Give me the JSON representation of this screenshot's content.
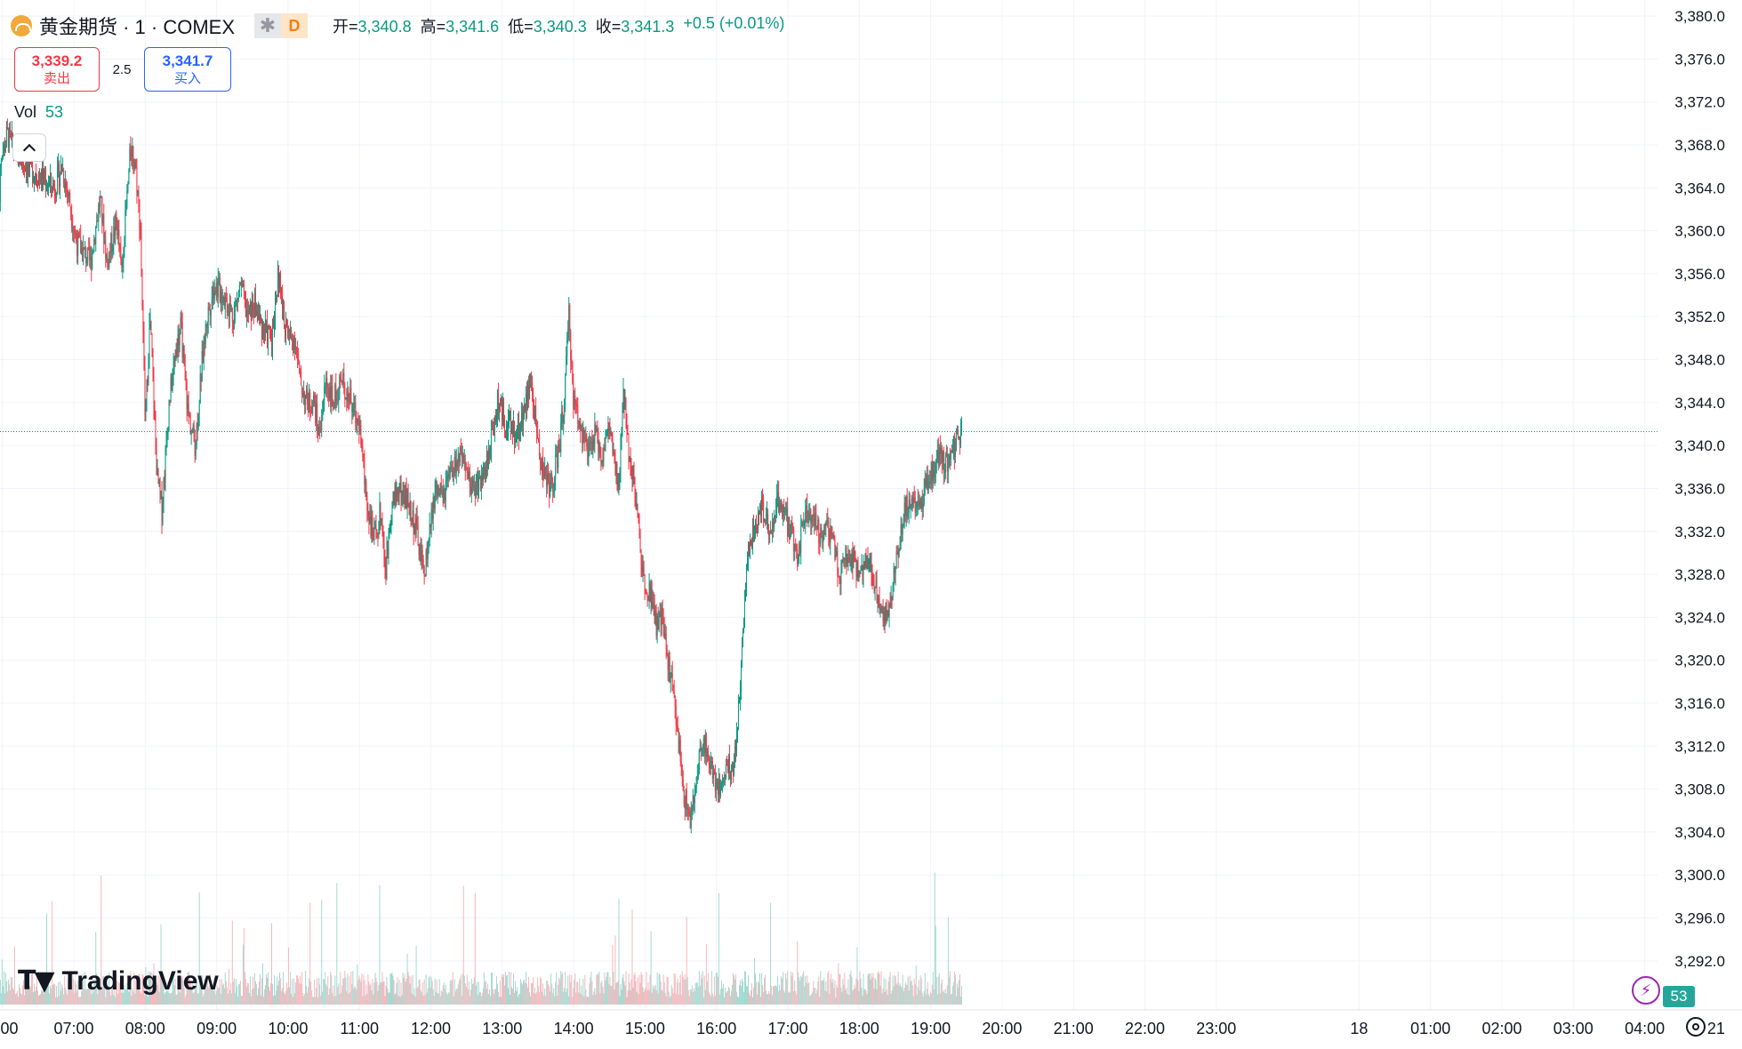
{
  "header": {
    "symbol_title": "黄金期货 · 1 · COMEX",
    "badge_d": "D",
    "ohlc": [
      {
        "k": "开=",
        "v": "3,340.8"
      },
      {
        "k": "高=",
        "v": "3,341.6"
      },
      {
        "k": "低=",
        "v": "3,340.3"
      },
      {
        "k": "收=",
        "v": "3,341.3"
      }
    ],
    "change": "+0.5 (+0.01%)"
  },
  "trade": {
    "sell_price": "3,339.2",
    "sell_label": "卖出",
    "spread": "2.5",
    "buy_price": "3,341.7",
    "buy_label": "买入"
  },
  "volume_legend": {
    "label": "Vol",
    "value": "53"
  },
  "branding": {
    "logo_text": "TradingView"
  },
  "status": {
    "volume_badge": "53"
  },
  "colors": {
    "up": "#089981",
    "down": "#f23645",
    "up_volume": "#a3d9d1",
    "down_volume": "#f7b7bc",
    "grid": "#f0f3fa",
    "last_price": "#089981"
  },
  "chart_data": {
    "type": "candlestick",
    "title": "黄金期货 · 1 · COMEX",
    "y_axis": {
      "ylim": [
        3290.0,
        3381.0
      ],
      "ticks": [
        "3,292.0",
        "3,296.0",
        "3,300.0",
        "3,304.0",
        "3,308.0",
        "3,312.0",
        "3,316.0",
        "3,320.0",
        "3,324.0",
        "3,328.0",
        "3,332.0",
        "3,336.0",
        "3,340.0",
        "3,344.0",
        "3,348.0",
        "3,352.0",
        "3,356.0",
        "3,360.0",
        "3,364.0",
        "3,368.0",
        "3,372.0",
        "3,376.0",
        "3,380.0"
      ],
      "tick_values": [
        3292,
        3296,
        3300,
        3304,
        3308,
        3312,
        3316,
        3320,
        3324,
        3328,
        3332,
        3336,
        3340,
        3344,
        3348,
        3352,
        3356,
        3360,
        3364,
        3368,
        3372,
        3376,
        3380
      ]
    },
    "x_axis": {
      "labels": [
        ":00",
        "07:00",
        "08:00",
        "09:00",
        "10:00",
        "11:00",
        "12:00",
        "13:00",
        "14:00",
        "15:00",
        "16:00",
        "17:00",
        "18:00",
        "19:00",
        "20:00",
        "21:00",
        "22:00",
        "23:00",
        "18",
        "01:00",
        "02:00",
        "03:00",
        "04:00",
        "21"
      ],
      "label_minutes": [
        -60,
        0,
        60,
        120,
        180,
        240,
        300,
        360,
        420,
        480,
        540,
        600,
        660,
        720,
        780,
        840,
        900,
        960,
        1080,
        1140,
        1200,
        1260,
        1320,
        1380
      ]
    },
    "last_price": 3341.3,
    "last_price_label": "3,341.3",
    "price_path": [
      [
        -64,
        3357
      ],
      [
        -62,
        3366
      ],
      [
        -56,
        3369
      ],
      [
        -48,
        3367
      ],
      [
        -38,
        3366
      ],
      [
        -28,
        3365
      ],
      [
        -16,
        3364
      ],
      [
        -10,
        3366
      ],
      [
        -4,
        3363
      ],
      [
        2,
        3359
      ],
      [
        8,
        3358
      ],
      [
        14,
        3357
      ],
      [
        22,
        3363
      ],
      [
        28,
        3357
      ],
      [
        36,
        3361
      ],
      [
        40,
        3356
      ],
      [
        44,
        3362
      ],
      [
        48,
        3368
      ],
      [
        52,
        3366
      ],
      [
        56,
        3360
      ],
      [
        60,
        3342
      ],
      [
        64,
        3352
      ],
      [
        70,
        3337
      ],
      [
        74,
        3334
      ],
      [
        80,
        3344
      ],
      [
        86,
        3349
      ],
      [
        90,
        3351
      ],
      [
        96,
        3343
      ],
      [
        102,
        3340
      ],
      [
        108,
        3348
      ],
      [
        112,
        3352
      ],
      [
        118,
        3355
      ],
      [
        126,
        3354
      ],
      [
        134,
        3352
      ],
      [
        140,
        3355
      ],
      [
        146,
        3352
      ],
      [
        152,
        3353
      ],
      [
        158,
        3351
      ],
      [
        166,
        3350
      ],
      [
        172,
        3356
      ],
      [
        176,
        3352
      ],
      [
        180,
        3350
      ],
      [
        186,
        3350
      ],
      [
        190,
        3346
      ],
      [
        196,
        3344
      ],
      [
        202,
        3344
      ],
      [
        206,
        3341
      ],
      [
        212,
        3346
      ],
      [
        218,
        3344
      ],
      [
        224,
        3346
      ],
      [
        230,
        3345
      ],
      [
        236,
        3343
      ],
      [
        240,
        3342
      ],
      [
        246,
        3335
      ],
      [
        252,
        3331
      ],
      [
        258,
        3334
      ],
      [
        262,
        3328
      ],
      [
        266,
        3334
      ],
      [
        272,
        3336
      ],
      [
        280,
        3335
      ],
      [
        288,
        3332
      ],
      [
        294,
        3328
      ],
      [
        298,
        3331
      ],
      [
        304,
        3336
      ],
      [
        310,
        3335
      ],
      [
        316,
        3337
      ],
      [
        324,
        3339
      ],
      [
        330,
        3337
      ],
      [
        336,
        3336
      ],
      [
        344,
        3337
      ],
      [
        350,
        3340
      ],
      [
        356,
        3344
      ],
      [
        364,
        3342
      ],
      [
        372,
        3341
      ],
      [
        378,
        3343
      ],
      [
        384,
        3346
      ],
      [
        388,
        3342
      ],
      [
        392,
        3339
      ],
      [
        396,
        3337
      ],
      [
        402,
        3336
      ],
      [
        408,
        3340
      ],
      [
        412,
        3344
      ],
      [
        416,
        3352
      ],
      [
        420,
        3344
      ],
      [
        426,
        3342
      ],
      [
        432,
        3339
      ],
      [
        438,
        3341
      ],
      [
        444,
        3339
      ],
      [
        450,
        3342
      ],
      [
        454,
        3338
      ],
      [
        458,
        3336
      ],
      [
        462,
        3345
      ],
      [
        466,
        3340
      ],
      [
        470,
        3337
      ],
      [
        474,
        3333
      ],
      [
        478,
        3328
      ],
      [
        482,
        3327
      ],
      [
        486,
        3326
      ],
      [
        490,
        3323
      ],
      [
        494,
        3324
      ],
      [
        498,
        3321
      ],
      [
        502,
        3318
      ],
      [
        506,
        3315
      ],
      [
        512,
        3308
      ],
      [
        518,
        3305
      ],
      [
        524,
        3309
      ],
      [
        528,
        3313
      ],
      [
        536,
        3310
      ],
      [
        542,
        3308
      ],
      [
        548,
        3310
      ],
      [
        554,
        3310
      ],
      [
        558,
        3314
      ],
      [
        562,
        3322
      ],
      [
        566,
        3330
      ],
      [
        572,
        3332
      ],
      [
        578,
        3334
      ],
      [
        582,
        3333
      ],
      [
        586,
        3331
      ],
      [
        590,
        3335
      ],
      [
        596,
        3334
      ],
      [
        602,
        3332
      ],
      [
        608,
        3330
      ],
      [
        614,
        3333
      ],
      [
        620,
        3334
      ],
      [
        626,
        3332
      ],
      [
        632,
        3332
      ],
      [
        638,
        3331
      ],
      [
        644,
        3328
      ],
      [
        650,
        3330
      ],
      [
        656,
        3329
      ],
      [
        662,
        3328
      ],
      [
        668,
        3329
      ],
      [
        676,
        3326
      ],
      [
        682,
        3324
      ],
      [
        688,
        3327
      ],
      [
        692,
        3330
      ],
      [
        698,
        3334
      ],
      [
        704,
        3335
      ],
      [
        710,
        3334
      ],
      [
        716,
        3336
      ],
      [
        722,
        3338
      ],
      [
        728,
        3339
      ],
      [
        734,
        3338
      ],
      [
        740,
        3340
      ],
      [
        746,
        3341.3
      ]
    ],
    "volume_note": "per-bar volume histogram at bottom, latest bar volume 53"
  }
}
